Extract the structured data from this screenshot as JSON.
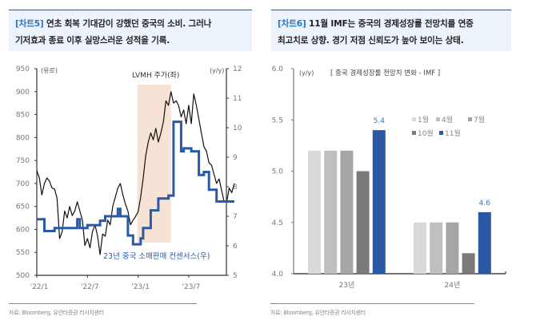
{
  "left_panel": {
    "caption_tag": "[차트5]",
    "caption_line1": "연초 회복 기대감이 강했던 중국의 소비. 그러나",
    "caption_line2": "기저효과 종료 이후 실망스러운 성적을 기록.",
    "source": "자료: Bloomberg, 유안타증권 리서치센터"
  },
  "right_panel": {
    "caption_tag": "[차트6]",
    "caption_line1": "11월 IMF는 중국의 경제성장률 전망치를 연중",
    "caption_line2": "최고치로 상향. 경기 저점 신뢰도가 높아 보이는 상태.",
    "source": "자료: Bloomberg, 유안타증권 리서치센터"
  },
  "chart_data": [
    {
      "type": "line",
      "title": "",
      "left_unit": "(유로)",
      "right_unit": "(y/y)",
      "y_left_lim": [
        500,
        950
      ],
      "y_left_ticks": [
        "500",
        "550",
        "600",
        "650",
        "700",
        "750",
        "800",
        "850",
        "900",
        "950"
      ],
      "y_right_lim": [
        5,
        12
      ],
      "y_right_ticks": [
        "5",
        "6",
        "7",
        "8",
        "9",
        "10",
        "11",
        "12"
      ],
      "x_range_months": [
        0,
        23.5
      ],
      "x_ticks": [
        {
          "label": "'22/1",
          "month": 0
        },
        {
          "label": "'22/7",
          "month": 6
        },
        {
          "label": "'23/1",
          "month": 12
        },
        {
          "label": "'23/7",
          "month": 18
        }
      ],
      "shaded_region": {
        "from_month": 11.9,
        "to_month": 15.9,
        "color": "#f6e3d6"
      },
      "grid": false,
      "series": [
        {
          "name": "LVMH 주가(좌)",
          "axis": "left",
          "color": "#111111",
          "annotation": "LVMH 주가(좌)",
          "x": [
            0,
            0.3,
            0.6,
            0.9,
            1.2,
            1.5,
            1.8,
            2.1,
            2.4,
            2.7,
            3.0,
            3.3,
            3.6,
            3.9,
            4.2,
            4.5,
            4.8,
            5.1,
            5.4,
            5.7,
            6.0,
            6.3,
            6.6,
            6.9,
            7.2,
            7.5,
            7.8,
            8.1,
            8.4,
            8.7,
            9.0,
            9.3,
            9.6,
            9.9,
            10.2,
            10.5,
            10.8,
            11.1,
            11.4,
            11.7,
            12.0,
            12.3,
            12.6,
            12.9,
            13.2,
            13.5,
            13.8,
            14.1,
            14.4,
            14.7,
            15.0,
            15.3,
            15.6,
            15.9,
            16.2,
            16.5,
            16.8,
            17.1,
            17.4,
            17.7,
            18.0,
            18.3,
            18.6,
            18.9,
            19.2,
            19.5,
            19.8,
            20.1,
            20.4,
            20.7,
            21.0,
            21.3,
            21.6,
            21.9,
            22.2,
            22.5,
            22.8,
            23.1,
            23.4
          ],
          "values": [
            728,
            712,
            675,
            700,
            712,
            705,
            690,
            688,
            668,
            580,
            595,
            640,
            625,
            650,
            630,
            640,
            660,
            640,
            620,
            565,
            580,
            560,
            595,
            610,
            585,
            545,
            590,
            585,
            620,
            610,
            650,
            670,
            690,
            700,
            675,
            655,
            640,
            610,
            620,
            628,
            638,
            670,
            710,
            760,
            790,
            810,
            795,
            820,
            790,
            810,
            835,
            880,
            870,
            900,
            875,
            880,
            870,
            845,
            860,
            830,
            870,
            830,
            895,
            870,
            840,
            810,
            780,
            770,
            745,
            740,
            720,
            700,
            710,
            685,
            660,
            660,
            690,
            680,
            700
          ]
        },
        {
          "name": "23년 중국 소매판매 컨센서스(우)",
          "axis": "right",
          "color": "#2a5aa6",
          "annotation": "23년 중국 소매판매 컨센서스(우)",
          "x": [
            0,
            0.6,
            0.9,
            1.5,
            2.1,
            2.4,
            2.7,
            3.3,
            3.6,
            4.5,
            4.8,
            5.1,
            5.7,
            6.0,
            6.3,
            6.6,
            7.2,
            7.5,
            8.1,
            8.4,
            9.0,
            9.3,
            9.6,
            9.9,
            10.5,
            10.8,
            11.1,
            11.4,
            11.7,
            12.0,
            12.3,
            12.6,
            13.2,
            13.5,
            14.1,
            14.4,
            15.0,
            15.6,
            15.9,
            16.2,
            16.5,
            16.8,
            17.1,
            17.4,
            18.0,
            18.3,
            18.6,
            19.2,
            19.5,
            19.8,
            20.4,
            20.7,
            21.0,
            21.3,
            21.6,
            22.5,
            22.8,
            23.4
          ],
          "values": [
            6.9,
            6.9,
            6.5,
            6.5,
            6.6,
            6.6,
            6.6,
            6.6,
            6.6,
            6.6,
            6.9,
            6.6,
            6.6,
            6.7,
            6.7,
            6.7,
            6.7,
            6.85,
            7.0,
            7.0,
            7.0,
            7.0,
            7.25,
            7.0,
            7.0,
            6.35,
            6.35,
            6.05,
            6.05,
            6.05,
            6.25,
            6.6,
            6.6,
            7.2,
            7.2,
            7.6,
            7.6,
            7.7,
            7.7,
            10.2,
            10.2,
            10.2,
            9.2,
            9.3,
            9.3,
            9.2,
            9.2,
            8.4,
            8.4,
            8.5,
            7.9,
            7.9,
            7.9,
            7.5,
            7.5,
            7.5,
            7.5,
            7.5
          ]
        }
      ]
    },
    {
      "type": "bar",
      "title": "[ 중국 경제성장률 전망치 변화 - IMF ]",
      "ylabel": "(y/y)",
      "ylim": [
        4.0,
        6.0
      ],
      "y_ticks": [
        "4.0",
        "4.5",
        "5.0",
        "5.5",
        "6.0"
      ],
      "categories": [
        "23년",
        "24년"
      ],
      "grid": false,
      "legend_position": "right-upper",
      "series": [
        {
          "name": "1월",
          "color": "#d9d9d9",
          "values": [
            5.2,
            4.5
          ]
        },
        {
          "name": "4월",
          "color": "#bfbfbf",
          "values": [
            5.2,
            4.5
          ]
        },
        {
          "name": "7월",
          "color": "#a6a6a6",
          "values": [
            5.2,
            4.5
          ]
        },
        {
          "name": "10월",
          "color": "#7a7a7a",
          "values": [
            5.0,
            4.2
          ]
        },
        {
          "name": "11월",
          "color": "#2b58a4",
          "values": [
            5.4,
            4.6
          ]
        }
      ],
      "data_labels": [
        {
          "series": "11월",
          "category": "23년",
          "text": "5.4"
        },
        {
          "series": "11월",
          "category": "24년",
          "text": "4.6"
        }
      ]
    }
  ]
}
